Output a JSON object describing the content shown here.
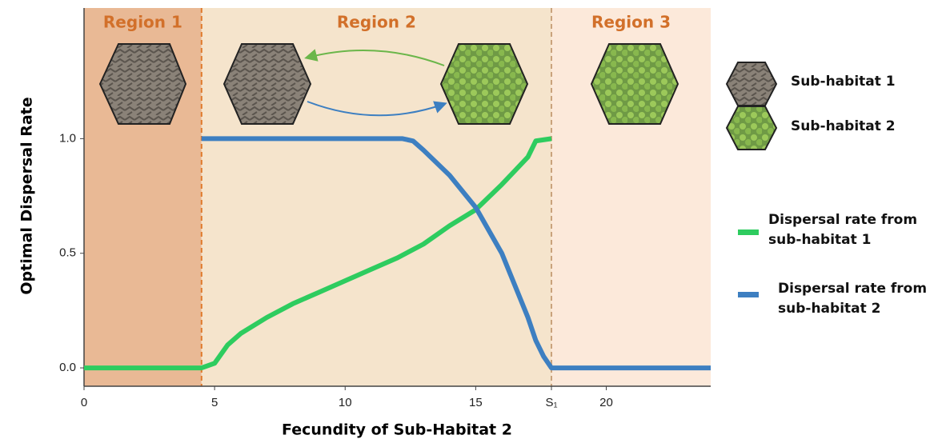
{
  "chart_data": {
    "type": "line",
    "xlabel": "Fecundity of Sub-Habitat 2",
    "ylabel": "Optimal Dispersal Rate",
    "xlim": [
      0,
      24
    ],
    "ylim": [
      -0.08,
      1.57
    ],
    "xticks": [
      0,
      5,
      10,
      15,
      {
        "value": 17.9,
        "label": "S₁"
      },
      20
    ],
    "yticks": [
      {
        "value": 0,
        "label": "0.0"
      },
      0.5,
      {
        "value": 1,
        "label": "1.0"
      }
    ],
    "regions": [
      {
        "label": "Region 1",
        "start": 0,
        "end": 4.5,
        "color": "#e9b995"
      },
      {
        "label": "Region 2",
        "start": 4.5,
        "end": 17.9,
        "color": "#f5e4cc"
      },
      {
        "label": "Region 3",
        "start": 17.9,
        "end": 24,
        "color": "#fce9da"
      }
    ],
    "habitats": [
      "Sub-habitat 1",
      "Sub-habitat 2"
    ],
    "series": [
      {
        "name": "Dispersal rate from sub-habitat 1",
        "color": "#2ecc5f",
        "x": [
          0,
          4.5,
          5,
          5.5,
          6,
          7,
          8,
          9,
          10,
          11,
          12,
          13,
          14,
          15,
          16,
          17,
          17.3,
          17.9
        ],
        "values": [
          0,
          0,
          0.02,
          0.1,
          0.15,
          0.22,
          0.28,
          0.33,
          0.38,
          0.43,
          0.48,
          0.54,
          0.62,
          0.69,
          0.8,
          0.92,
          0.99,
          1.0
        ]
      },
      {
        "name": "Dispersal rate from sub-habitat 2",
        "color": "#3d7fc1",
        "x": [
          4.5,
          12.2,
          12.6,
          13,
          14,
          15,
          16,
          17,
          17.3,
          17.6,
          17.9,
          24
        ],
        "values": [
          1.0,
          1.0,
          0.99,
          0.95,
          0.84,
          0.7,
          0.5,
          0.22,
          0.12,
          0.05,
          0.0,
          0.0
        ]
      }
    ]
  }
}
